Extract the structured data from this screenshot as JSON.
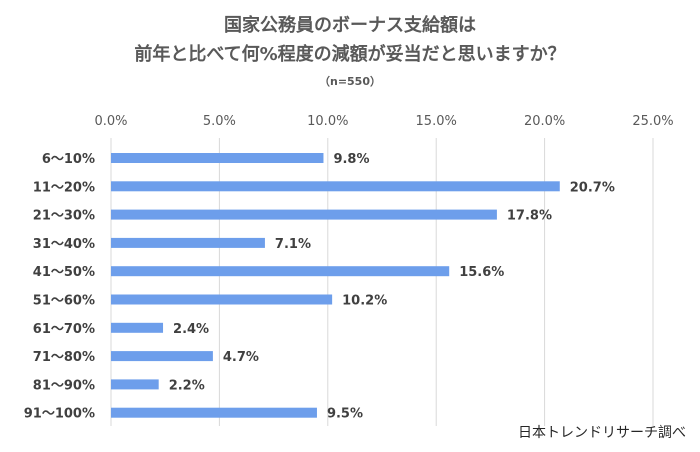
{
  "chart_data": {
    "type": "bar",
    "orientation": "horizontal",
    "title_line1": "国家公務員のボーナス支給額は",
    "title_line2": "前年と比べて何%程度の減額が妥当だと思いますか？",
    "subtitle": "（n=550）",
    "categories": [
      "6～10%",
      "11～20%",
      "21～30%",
      "31～40%",
      "41～50%",
      "51～60%",
      "61～70%",
      "71～80%",
      "81～90%",
      "91～100%"
    ],
    "values": [
      9.8,
      20.7,
      17.8,
      7.1,
      15.6,
      10.2,
      2.4,
      4.7,
      2.2,
      9.5
    ],
    "data_labels": [
      "9.8%",
      "20.7%",
      "17.8%",
      "7.1%",
      "15.6%",
      "10.2%",
      "2.4%",
      "4.7%",
      "2.2%",
      "9.5%"
    ],
    "xlim": [
      0,
      25
    ],
    "xticks": [
      0,
      5,
      10,
      15,
      20,
      25
    ],
    "xtick_labels": [
      "0.0%",
      "5.0%",
      "10.0%",
      "15.0%",
      "20.0%",
      "25.0%"
    ],
    "x_axis_position": "top",
    "grid": "vertical",
    "bar_color": "#6d9eeb",
    "grid_color": "#d9d9d9"
  },
  "source_note": "日本トレンドリサーチ調べ"
}
